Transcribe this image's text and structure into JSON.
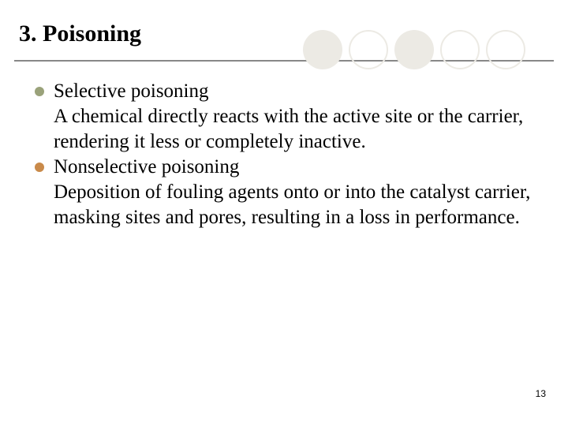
{
  "slide": {
    "title": "3. Poisoning",
    "page_number": "13",
    "background_color": "#ffffff",
    "title_divider_color": "#888888",
    "title_fontsize": 30,
    "body_fontsize": 25,
    "font_family": "Georgia, Times New Roman, serif"
  },
  "decorative_circles": {
    "count": 5,
    "diameter": 50,
    "gap": 8,
    "filled_indices": [
      0,
      2
    ],
    "fill_color": "#eceae4",
    "outline_color": "#eceae4",
    "outline_width": 2
  },
  "bullets": [
    {
      "bullet_color": "#9aa27a",
      "title": "Selective poisoning",
      "body": "A chemical directly reacts with the active site or the carrier, rendering it less or completely inactive."
    },
    {
      "bullet_color": "#c98a4a",
      "title": "Nonselective poisoning",
      "body": "Deposition of fouling agents onto or into the catalyst carrier, masking sites and pores, resulting in a loss in performance."
    }
  ]
}
